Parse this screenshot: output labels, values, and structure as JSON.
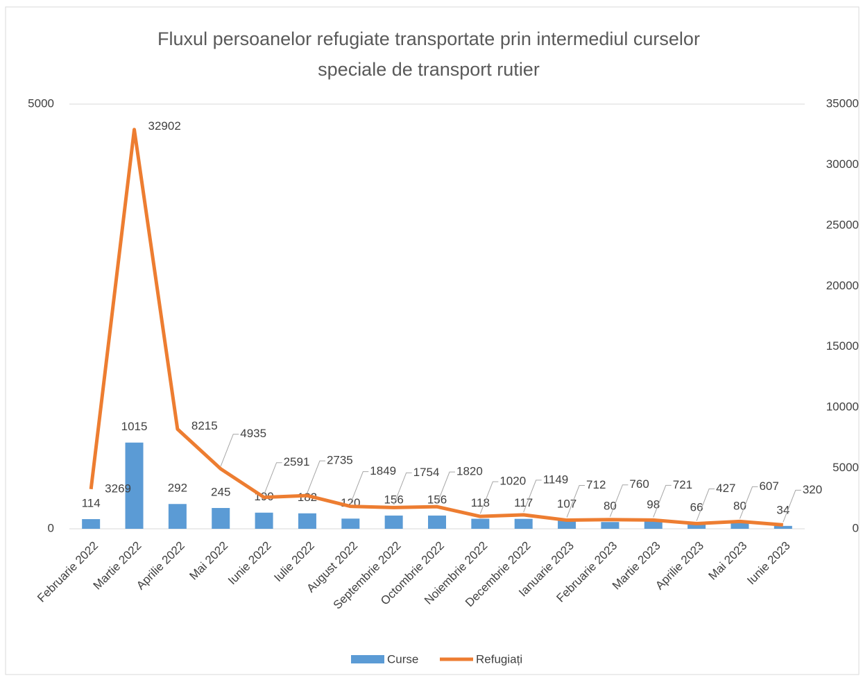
{
  "chart_data": {
    "type": "bar-line",
    "title": "Fluxul persoanelor refugiate transportate prin intermediul curselor speciale de transport rutier",
    "categories": [
      "Februarie 2022",
      "Martie 2022",
      "Aprilie 2022",
      "Mai 2022",
      "Iunie 2022",
      "Iulie 2022",
      "August 2022",
      "Septembrie 2022",
      "Octombrie 2022",
      "Noiembrie 2022",
      "Decembrie 2022",
      "Ianuarie 2023",
      "Februarie 2023",
      "Martie 2023",
      "Aprilie 2023",
      "Mai 2023",
      "Iunie 2023"
    ],
    "series": [
      {
        "name": "Curse",
        "color": "#5b9bd5",
        "type": "bar",
        "axis": "y",
        "values": [
          114,
          1015,
          292,
          245,
          190,
          182,
          120,
          156,
          156,
          118,
          117,
          107,
          80,
          98,
          66,
          80,
          34
        ]
      },
      {
        "name": "Refugiați",
        "color": "#ed7d31",
        "type": "line",
        "axis": "y2",
        "values": [
          3269,
          32902,
          8215,
          4935,
          2591,
          2735,
          1849,
          1754,
          1820,
          1020,
          1149,
          712,
          760,
          721,
          427,
          607,
          320
        ]
      }
    ],
    "ylim": [
      0,
      5000
    ],
    "yticks": [
      0,
      5000
    ],
    "y2lim": [
      0,
      35000
    ],
    "y2ticks": [
      0,
      5000,
      10000,
      15000,
      20000,
      25000,
      30000,
      35000
    ],
    "grid": true,
    "legend": "bottom"
  }
}
